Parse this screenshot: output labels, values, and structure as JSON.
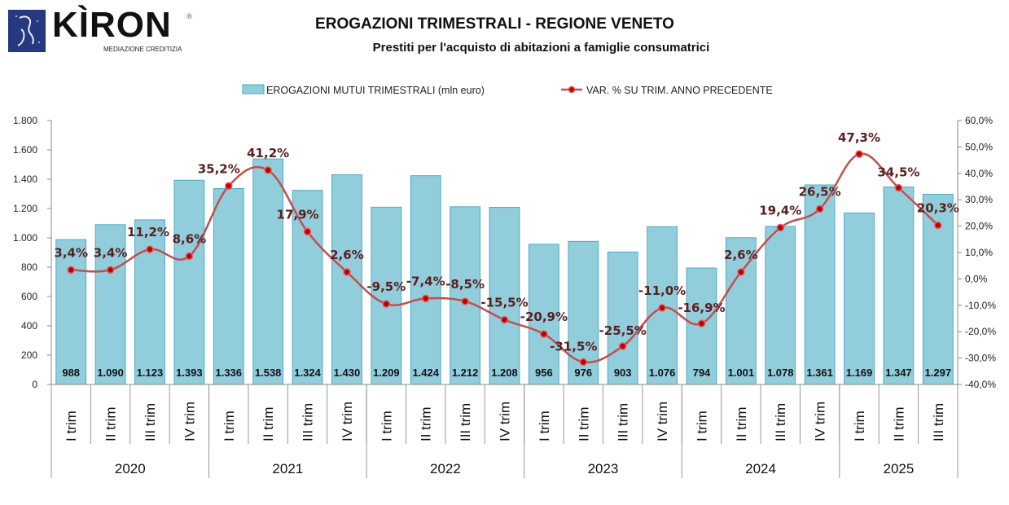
{
  "logo": {
    "brand": "KÌRON",
    "tagline": "MEDIAZIONE CREDITIZIA",
    "registered": "®"
  },
  "chart_data": {
    "type": "bar+line",
    "title": "EROGAZIONI TRIMESTRALI - REGIONE VENETO",
    "subtitle": "Prestiti per l'acquisto di abitazioni a famiglie consumatrici",
    "legend_position": "top-center",
    "categories": [
      "I trim",
      "II trim",
      "III trim",
      "IV trim",
      "I trim",
      "II trim",
      "III trim",
      "IV trim",
      "I trim",
      "II trim",
      "III trim",
      "IV trim",
      "I trim",
      "II trim",
      "III trim",
      "IV trim",
      "I trim",
      "II trim",
      "III trim",
      "IV trim",
      "I trim",
      "II trim",
      "III trim"
    ],
    "year_groups": [
      {
        "label": "2020",
        "count": 4
      },
      {
        "label": "2021",
        "count": 4
      },
      {
        "label": "2022",
        "count": 4
      },
      {
        "label": "2023",
        "count": 4
      },
      {
        "label": "2024",
        "count": 4
      },
      {
        "label": "2025",
        "count": 3
      }
    ],
    "series": [
      {
        "name": "EROGAZIONI MUTUI TRIMESTRALI (mln euro)",
        "type": "bar",
        "axis": "left",
        "color": "#92cddc",
        "border_color": "#4bacc6",
        "values": [
          988,
          1090,
          1123,
          1393,
          1336,
          1538,
          1324,
          1430,
          1209,
          1424,
          1212,
          1208,
          956,
          976,
          903,
          1076,
          794,
          1001,
          1078,
          1361,
          1169,
          1347,
          1297
        ],
        "labels": [
          "988",
          "1.090",
          "1.123",
          "1.393",
          "1.336",
          "1.538",
          "1.324",
          "1.430",
          "1.209",
          "1.424",
          "1.212",
          "1.208",
          "956",
          "976",
          "903",
          "1.076",
          "794",
          "1.001",
          "1.078",
          "1.361",
          "1.169",
          "1.347",
          "1.297"
        ]
      },
      {
        "name": "VAR. % SU TRIM. ANNO PRECEDENTE",
        "type": "line",
        "axis": "right",
        "color": "#c0504d",
        "marker_color": "#c00000",
        "values": [
          3.4,
          3.4,
          11.2,
          8.6,
          35.2,
          41.2,
          17.9,
          2.6,
          -9.5,
          -7.4,
          -8.5,
          -15.5,
          -20.9,
          -31.5,
          -25.5,
          -11.0,
          -16.9,
          2.6,
          19.4,
          26.5,
          47.3,
          34.5,
          20.3
        ],
        "labels": [
          "3,4%",
          "3,4%",
          "11,2%",
          "8,6%",
          "35,2%",
          "41,2%",
          "17,9%",
          "2,6%",
          "-9,5%",
          "-7,4%",
          "-8,5%",
          "-15,5%",
          "-20,9%",
          "-31,5%",
          "-25,5%",
          "-11,0%",
          "-16,9%",
          "2,6%",
          "19,4%",
          "26,5%",
          "47,3%",
          "34,5%",
          "20,3%"
        ]
      }
    ],
    "y_left": {
      "min": 0,
      "max": 1800,
      "step": 200,
      "tick_labels": [
        "0",
        "200",
        "400",
        "600",
        "800",
        "1.000",
        "1.200",
        "1.400",
        "1.600",
        "1.800"
      ]
    },
    "y_right": {
      "min": -40,
      "max": 60,
      "step": 10,
      "tick_labels": [
        "-40,0%",
        "-30,0%",
        "-20,0%",
        "-10,0%",
        "0,0%",
        "10,0%",
        "20,0%",
        "30,0%",
        "40,0%",
        "50,0%",
        "60,0%"
      ]
    },
    "grid": false
  }
}
